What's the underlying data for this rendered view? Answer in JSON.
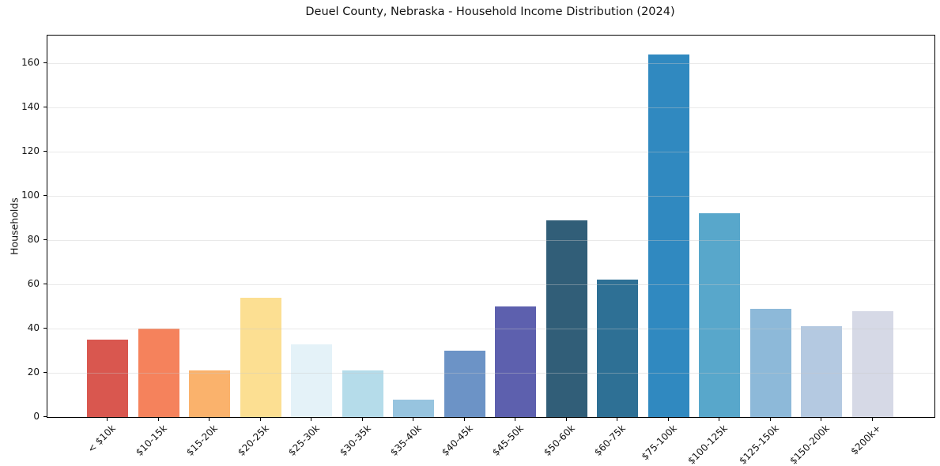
{
  "title": "Deuel County, Nebraska - Household Income Distribution (2024)",
  "chart_data": {
    "type": "bar",
    "title": "Deuel County, Nebraska - Household Income Distribution (2024)",
    "xlabel": "",
    "ylabel": "Households",
    "categories": [
      "< $10k",
      "$10-15k",
      "$15-20k",
      "$20-25k",
      "$25-30k",
      "$30-35k",
      "$35-40k",
      "$40-45k",
      "$45-50k",
      "$50-60k",
      "$60-75k",
      "$75-100k",
      "$100-125k",
      "$125-150k",
      "$150-200k",
      "$200k+"
    ],
    "values": [
      35,
      40,
      21,
      54,
      33,
      21,
      8,
      30,
      50,
      89,
      62,
      164,
      92,
      49,
      41,
      48
    ],
    "bar_colors": [
      "#d9574f",
      "#f5825c",
      "#fab26c",
      "#fcdf92",
      "#e4f2f8",
      "#b5dcea",
      "#97c4df",
      "#6c93c6",
      "#5d60ae",
      "#315e78",
      "#2e7095",
      "#3089c0",
      "#58a7cb",
      "#8db9d9",
      "#b4c9e1",
      "#d6d9e6"
    ],
    "yticks": [
      0,
      20,
      40,
      60,
      80,
      100,
      120,
      140,
      160
    ],
    "ylim": [
      0,
      172.5
    ],
    "grid": true,
    "legend": "none",
    "background_color": "#ffffff",
    "axis_color": "#000000",
    "grid_color": "#ececec",
    "x_tick_rotation_deg": 45
  }
}
